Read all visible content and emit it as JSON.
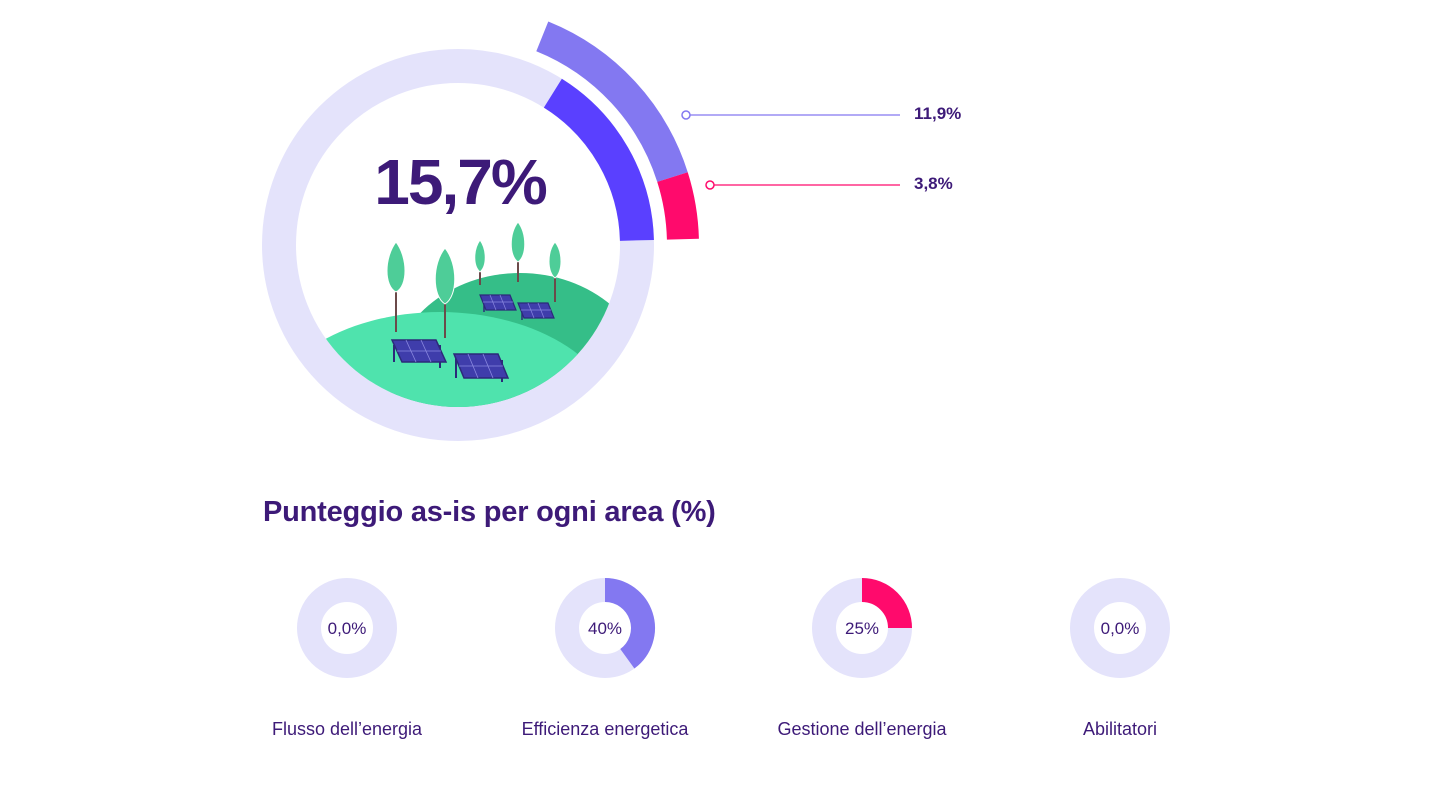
{
  "chart_data": [
    {
      "type": "pie",
      "variant": "donut",
      "center_label": "15,7%",
      "total": 15.7,
      "segments": [
        {
          "value": 11.9,
          "label": "11,9%",
          "color": "#8378f1"
        },
        {
          "value": 3.8,
          "label": "3,8%",
          "color": "#ff0a6c"
        }
      ],
      "inner_segment_color": "#5a40ff",
      "track_color": "#e4e3fb"
    },
    {
      "type": "pie",
      "variant": "donut",
      "title": "Punteggio as-is per ogni area (%)",
      "items": [
        {
          "name": "Flusso dell’energia",
          "value": 0,
          "label": "0,0%",
          "color": "#8378f1"
        },
        {
          "name": "Efficienza energetica",
          "value": 40,
          "label": "40%",
          "color": "#8378f1"
        },
        {
          "name": "Gestione dell’energia",
          "value": 25,
          "label": "25%",
          "color": "#ff0a6c"
        },
        {
          "name": "Abilitatori",
          "value": 0,
          "label": "0,0%",
          "color": "#8378f1"
        }
      ],
      "track_color": "#e4e3fb"
    }
  ],
  "colors": {
    "text": "#3d1a78",
    "hill_light": "#4fe3ad",
    "hill_dark": "#35be88",
    "tree": "#4ecd98",
    "panel": "#3f3dab"
  },
  "icons": [
    "solar-landscape-illustration"
  ]
}
